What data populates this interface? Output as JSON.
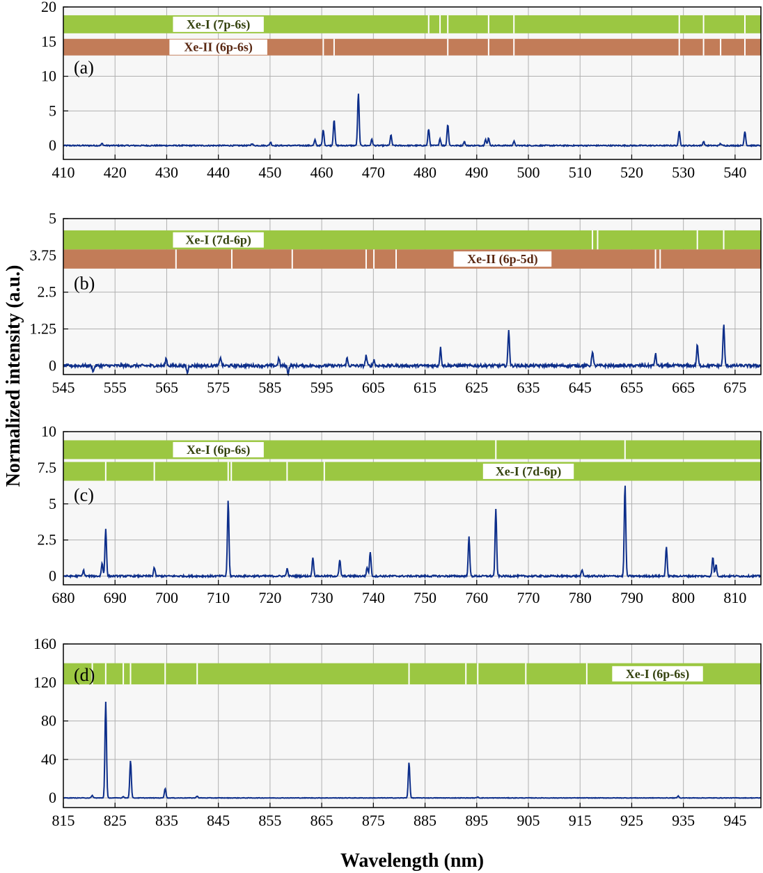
{
  "figure": {
    "ylabel": "Normalized intensity (a.u.)",
    "xlabel": "Wavelength (nm)",
    "colors": {
      "series": "#0d2e8a",
      "xe1_band": "#9bc742",
      "xe2_band": "#c27c58",
      "xe1_text": "#35430f",
      "xe2_text": "#5a2812",
      "plot_bg": "#f7f7f7",
      "grid": "#b0b0b0"
    }
  },
  "chart_data": [
    {
      "type": "line",
      "panel": "(a)",
      "xlim": [
        410,
        545
      ],
      "ylim": [
        -2,
        20
      ],
      "xticks": [
        410,
        420,
        430,
        440,
        450,
        460,
        470,
        480,
        490,
        500,
        510,
        520,
        530,
        540
      ],
      "yticks": [
        0,
        5,
        10,
        15,
        20
      ],
      "ytick_labels": [
        "0",
        "5",
        "10",
        "15",
        "20"
      ],
      "grid": true,
      "noise": 0.08,
      "peaks": [
        [
          417.5,
          0.3
        ],
        [
          446.5,
          0.3
        ],
        [
          450.1,
          0.5
        ],
        [
          458.7,
          0.8
        ],
        [
          460.3,
          2.3
        ],
        [
          462.4,
          3.8
        ],
        [
          467.1,
          7.5
        ],
        [
          469.7,
          0.9
        ],
        [
          473.4,
          1.5
        ],
        [
          480.7,
          2.4
        ],
        [
          482.9,
          1.0
        ],
        [
          484.4,
          3.1
        ],
        [
          487.6,
          0.6
        ],
        [
          491.7,
          0.9
        ],
        [
          492.3,
          1.1
        ],
        [
          497.2,
          0.6
        ],
        [
          529.2,
          2.1
        ],
        [
          533.9,
          0.6
        ],
        [
          537.2,
          0.3
        ],
        [
          541.9,
          2.1
        ]
      ],
      "bands": [
        {
          "kind": "xe1",
          "label": "Xe-I (7p-6s)",
          "ymin": 16.2,
          "ymax": 18.8,
          "label_at": 440,
          "lines": [
            480.7,
            482.9,
            484.4,
            492.3,
            497.2,
            529.2,
            533.9,
            541.9
          ]
        },
        {
          "kind": "xe2",
          "label": "Xe-II (6p-6s)",
          "ymin": 13.0,
          "ymax": 15.4,
          "label_at": 440,
          "lines": [
            460.3,
            462.4,
            484.4,
            492.3,
            497.2,
            529.2,
            533.9,
            537.2,
            541.9
          ]
        }
      ]
    },
    {
      "type": "line",
      "panel": "(b)",
      "xlim": [
        545,
        680
      ],
      "ylim": [
        -0.3,
        5
      ],
      "xticks": [
        545,
        555,
        565,
        575,
        585,
        595,
        605,
        615,
        625,
        635,
        645,
        655,
        665,
        675
      ],
      "yticks": [
        0,
        1.25,
        2.5,
        3.75,
        5
      ],
      "ytick_labels": [
        "0",
        "1.25",
        "2.5",
        "3.75",
        "5"
      ],
      "grid": true,
      "noise": 0.05,
      "peaks": [
        [
          550.8,
          -0.2
        ],
        [
          564.9,
          0.25
        ],
        [
          569.0,
          -0.25
        ],
        [
          575.4,
          0.3
        ],
        [
          586.7,
          0.25
        ],
        [
          588.5,
          -0.25
        ],
        [
          599.9,
          0.25
        ],
        [
          603.6,
          0.35
        ],
        [
          605.1,
          0.2
        ],
        [
          618.0,
          0.6
        ],
        [
          631.2,
          1.2
        ],
        [
          647.4,
          0.5
        ],
        [
          659.6,
          0.4
        ],
        [
          667.7,
          0.7
        ],
        [
          672.8,
          1.4
        ]
      ],
      "bands": [
        {
          "kind": "xe1",
          "label": "Xe-I (7d-6p)",
          "ymin": 3.95,
          "ymax": 4.6,
          "label_at": 575,
          "lines": [
            647.4,
            648.4,
            667.7,
            672.8
          ]
        },
        {
          "kind": "xe2",
          "label": "Xe-II (6p-5d)",
          "ymin": 3.3,
          "ymax": 3.95,
          "label_at": 630,
          "lines": [
            566.8,
            577.6,
            589.3,
            603.6,
            605.1,
            609.4,
            659.6,
            660.5
          ]
        }
      ]
    },
    {
      "type": "line",
      "panel": "(c)",
      "xlim": [
        680,
        815
      ],
      "ylim": [
        -0.6,
        10
      ],
      "xticks": [
        680,
        690,
        700,
        710,
        720,
        730,
        740,
        750,
        760,
        770,
        780,
        790,
        800,
        810
      ],
      "yticks": [
        0,
        2.5,
        5,
        7.5,
        10
      ],
      "ytick_labels": [
        "0",
        "2.5",
        "5",
        "7.5",
        "10"
      ],
      "grid": true,
      "noise": 0.06,
      "peaks": [
        [
          683.9,
          0.4
        ],
        [
          687.5,
          0.9
        ],
        [
          688.2,
          3.3
        ],
        [
          697.6,
          0.6
        ],
        [
          711.9,
          5.2
        ],
        [
          723.3,
          0.5
        ],
        [
          728.3,
          1.3
        ],
        [
          733.5,
          1.1
        ],
        [
          738.8,
          0.6
        ],
        [
          739.4,
          1.7
        ],
        [
          758.5,
          2.7
        ],
        [
          763.7,
          4.6
        ],
        [
          780.4,
          0.4
        ],
        [
          788.7,
          6.3
        ],
        [
          796.7,
          2.0
        ],
        [
          805.7,
          1.3
        ],
        [
          806.3,
          0.8
        ]
      ],
      "bands": [
        {
          "kind": "xe1",
          "label": "Xe-I (6p-6s)",
          "ymin": 8.1,
          "ymax": 9.4,
          "label_at": 710,
          "lines": [
            763.7,
            788.7
          ]
        },
        {
          "kind": "xe1",
          "label": "Xe-I (7d-6p)",
          "ymin": 6.6,
          "ymax": 7.9,
          "label_at": 770,
          "lines": [
            688.2,
            697.6,
            711.9,
            712.5,
            723.3,
            730.5
          ]
        }
      ]
    },
    {
      "type": "line",
      "panel": "(d)",
      "xlim": [
        815,
        950
      ],
      "ylim": [
        -10,
        160
      ],
      "xticks": [
        815,
        825,
        835,
        845,
        855,
        865,
        875,
        885,
        895,
        905,
        915,
        925,
        935,
        945
      ],
      "yticks": [
        0,
        40,
        80,
        120,
        160
      ],
      "ytick_labels": [
        "0",
        "40",
        "80",
        "120",
        "160"
      ],
      "grid": true,
      "noise": 0.25,
      "peaks": [
        [
          820.6,
          2.5
        ],
        [
          823.2,
          100
        ],
        [
          826.6,
          1.5
        ],
        [
          828.0,
          39
        ],
        [
          834.7,
          10
        ],
        [
          840.9,
          2
        ],
        [
          881.9,
          37
        ],
        [
          895.2,
          1
        ],
        [
          934.0,
          2
        ]
      ],
      "bands": [
        {
          "kind": "xe1",
          "label": "Xe-I (6p-6s)",
          "ymin": 118,
          "ymax": 140,
          "label_at": 930,
          "lines": [
            820.6,
            823.2,
            826.6,
            828.0,
            834.7,
            840.9,
            881.9,
            892.9,
            895.2,
            904.5,
            916.3
          ]
        }
      ]
    }
  ]
}
